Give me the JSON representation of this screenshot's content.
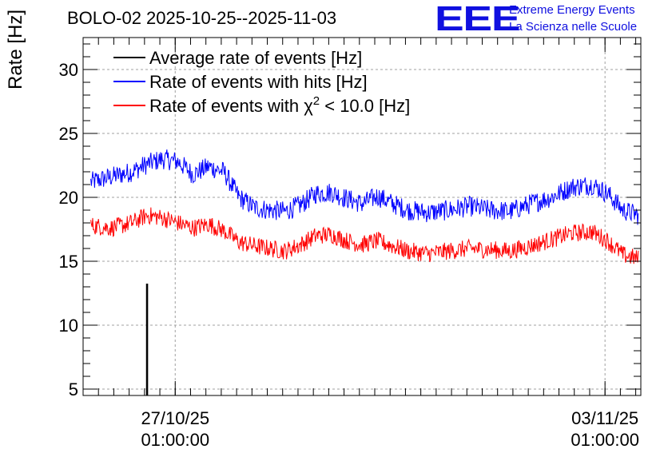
{
  "header": {
    "title": "BOLO-02 2025-10-25--2025-11-03",
    "logo_text": "EEE",
    "org_line1": "Extreme Energy Events",
    "org_line2": "La Scienza nelle Scuole"
  },
  "chart_data": {
    "type": "line",
    "ylabel": "Rate [Hz]",
    "ylim": [
      4.5,
      32.5
    ],
    "xlim": [
      "2025-10-25 13:00",
      "2025-11-03 15:00"
    ],
    "yticks": [
      "5",
      "10",
      "15",
      "20",
      "25",
      "30"
    ],
    "xticks": [
      {
        "x": "2025-10-27 01:00",
        "line1": "27/10/25",
        "line2": "01:00:00"
      },
      {
        "x": "2025-11-03 01:00",
        "line1": "03/11/25",
        "line2": "01:00:00"
      }
    ],
    "grid": true,
    "legend_position": "top-left",
    "legend": [
      {
        "label": "Average rate of events [Hz]",
        "color": "#000000"
      },
      {
        "label": "Rate of events with hits [Hz]",
        "color": "#0000ff"
      },
      {
        "label_prefix": "Rate of events with ",
        "label_chi": "χ",
        "label_sup": "2",
        "label_suffix": " < 10.0 [Hz]",
        "color": "#ff0000"
      }
    ],
    "series": [
      {
        "name": "Rate of events with hits [Hz]",
        "color": "#0000ff",
        "noise": 0.8,
        "x": [
          "2025-10-25 16:00",
          "2025-10-26 00:00",
          "2025-10-26 08:00",
          "2025-10-26 14:00",
          "2025-10-26 20:00",
          "2025-10-27 02:00",
          "2025-10-27 08:00",
          "2025-10-27 14:00",
          "2025-10-27 20:00",
          "2025-10-28 02:00",
          "2025-10-28 08:00",
          "2025-10-28 14:00",
          "2025-10-28 20:00",
          "2025-10-29 02:00",
          "2025-10-29 08:00",
          "2025-10-29 14:00",
          "2025-10-29 20:00",
          "2025-10-30 02:00",
          "2025-10-30 08:00",
          "2025-10-30 14:00",
          "2025-10-30 20:00",
          "2025-10-31 04:00",
          "2025-10-31 12:00",
          "2025-10-31 20:00",
          "2025-11-01 04:00",
          "2025-11-01 12:00",
          "2025-11-01 20:00",
          "2025-11-02 04:00",
          "2025-11-02 12:00",
          "2025-11-02 20:00",
          "2025-11-03 02:00",
          "2025-11-03 08:00",
          "2025-11-03 14:00"
        ],
        "values": [
          21.2,
          21.6,
          22.0,
          22.6,
          23.0,
          22.8,
          21.8,
          22.4,
          22.0,
          20.0,
          19.2,
          19.0,
          18.9,
          19.4,
          20.3,
          20.4,
          19.9,
          19.5,
          20.1,
          19.5,
          19.0,
          18.8,
          19.0,
          19.3,
          19.0,
          18.9,
          19.5,
          20.0,
          20.8,
          21.0,
          20.3,
          19.0,
          18.6
        ]
      },
      {
        "name": "Rate of events with χ2 < 10.0 [Hz]",
        "color": "#ff0000",
        "noise": 0.7,
        "x": [
          "2025-10-25 16:00",
          "2025-10-26 00:00",
          "2025-10-26 08:00",
          "2025-10-26 14:00",
          "2025-10-26 20:00",
          "2025-10-27 02:00",
          "2025-10-27 08:00",
          "2025-10-27 14:00",
          "2025-10-27 20:00",
          "2025-10-28 02:00",
          "2025-10-28 08:00",
          "2025-10-28 14:00",
          "2025-10-28 20:00",
          "2025-10-29 02:00",
          "2025-10-29 08:00",
          "2025-10-29 14:00",
          "2025-10-29 20:00",
          "2025-10-30 02:00",
          "2025-10-30 08:00",
          "2025-10-30 14:00",
          "2025-10-30 20:00",
          "2025-10-31 04:00",
          "2025-10-31 12:00",
          "2025-10-31 20:00",
          "2025-11-01 04:00",
          "2025-11-01 12:00",
          "2025-11-01 20:00",
          "2025-11-02 04:00",
          "2025-11-02 12:00",
          "2025-11-02 20:00",
          "2025-11-03 02:00",
          "2025-11-03 08:00",
          "2025-11-03 14:00"
        ],
        "values": [
          17.8,
          17.6,
          18.0,
          18.6,
          18.4,
          18.0,
          17.6,
          17.9,
          17.4,
          16.5,
          16.2,
          16.0,
          15.8,
          16.3,
          17.0,
          17.1,
          16.6,
          16.3,
          16.6,
          16.2,
          15.8,
          15.6,
          15.8,
          16.0,
          15.9,
          15.8,
          16.2,
          16.7,
          17.2,
          17.3,
          16.6,
          15.5,
          15.2
        ]
      },
      {
        "name": "Average rate of events [Hz]",
        "color": "#000000",
        "x": [
          "2025-10-26 13:50",
          "2025-10-26 13:50",
          "2025-10-26 14:10",
          "2025-10-26 14:10"
        ],
        "values": [
          4.5,
          13.2,
          13.2,
          4.5
        ]
      }
    ]
  }
}
